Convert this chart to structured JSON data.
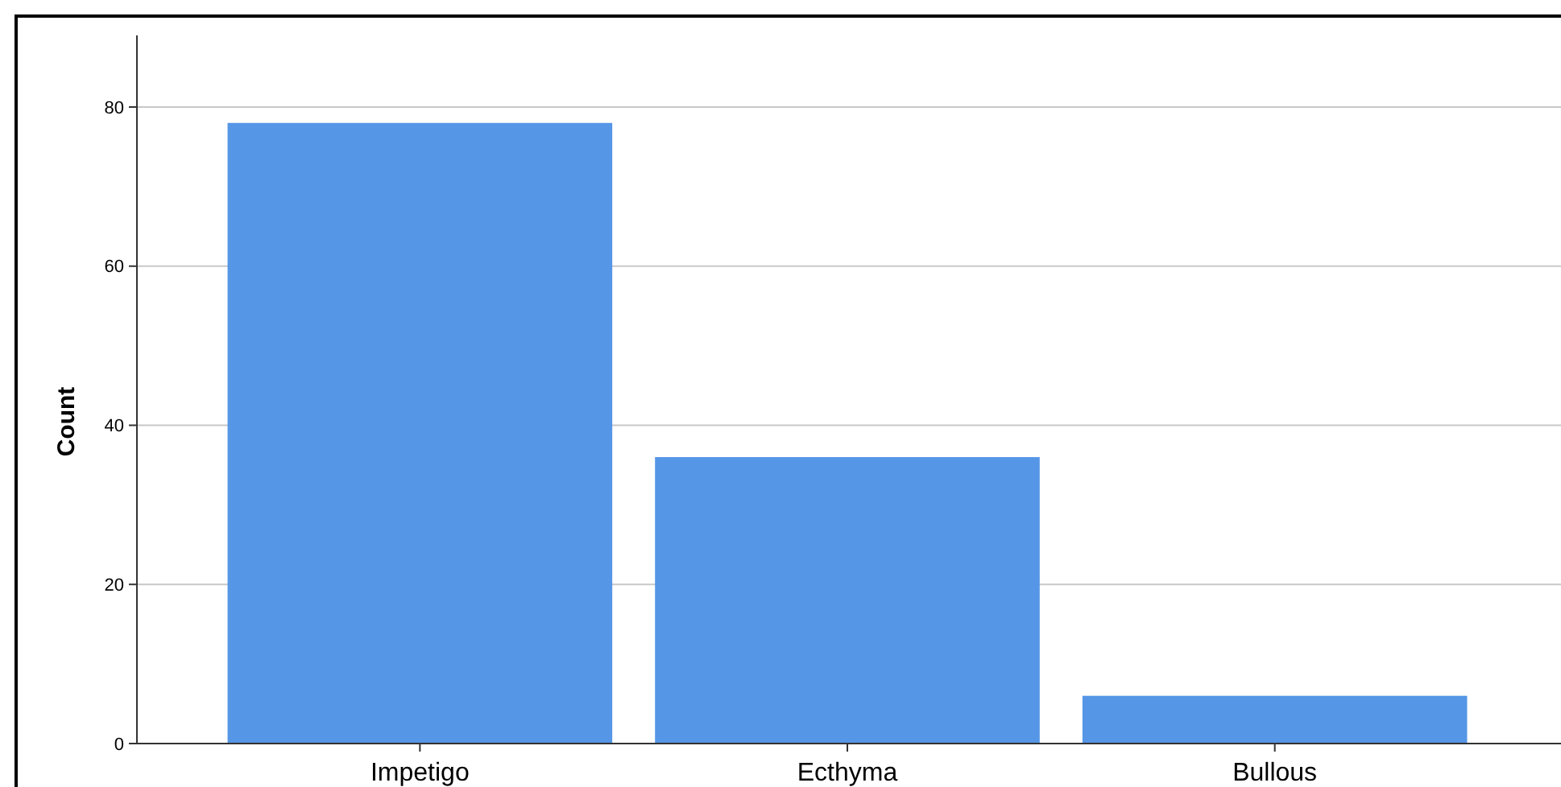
{
  "chart_data": {
    "type": "bar",
    "ylabel": "Count",
    "categories": [
      "Impetigo",
      "Ecthyma",
      "Bullous"
    ],
    "values": [
      78,
      36,
      6
    ],
    "color": "#5596e6",
    "ylim": [
      0,
      89
    ],
    "yticks": [
      0,
      20,
      40,
      60,
      80
    ],
    "grid": "y"
  }
}
